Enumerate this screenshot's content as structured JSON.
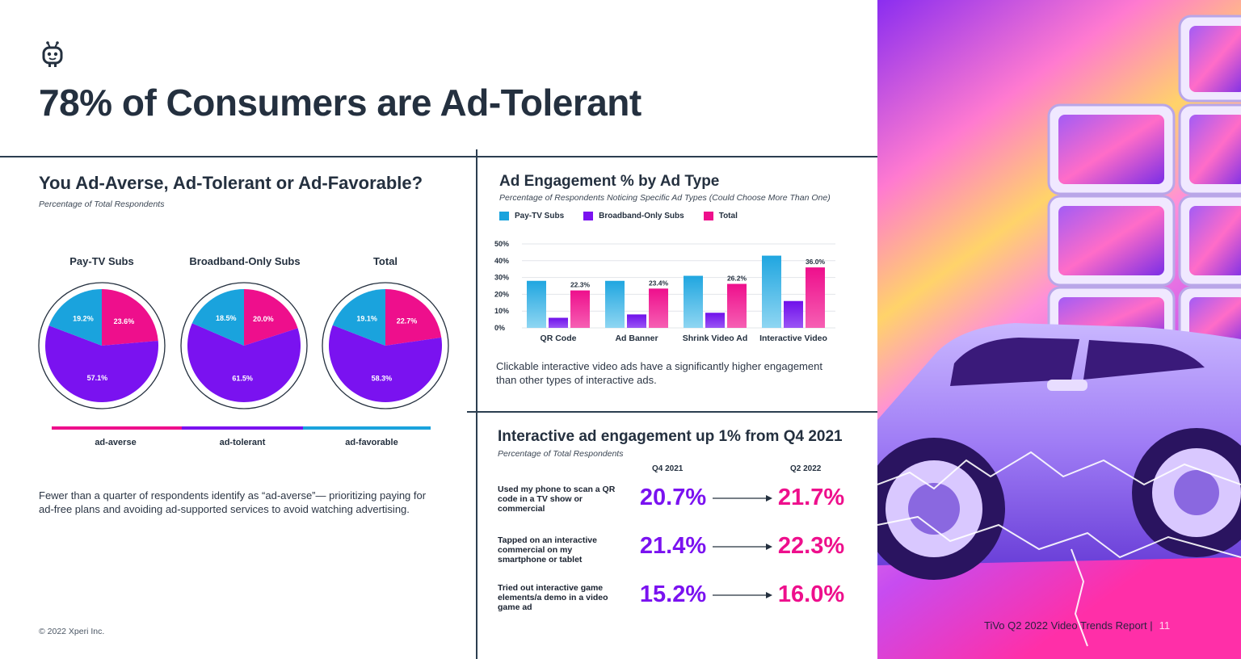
{
  "header": {
    "title": "78% of Consumers are Ad-Tolerant"
  },
  "pies_section": {
    "title": "You Ad-Averse, Ad-Tolerant or Ad-Favorable?",
    "subtitle": "Percentage of Total Respondents",
    "legend": [
      "ad-averse",
      "ad-tolerant",
      "ad-favorable"
    ],
    "description": "Fewer than a quarter of respondents identify as “ad-averse”— prioritizing paying for ad-free plans and avoiding ad-supported services to avoid watching advertising."
  },
  "bar_section": {
    "title": "Ad Engagement % by Ad Type",
    "subtitle": "Percentage of Respondents Noticing Specific Ad Types (Could Choose More Than One)",
    "description": "Clickable interactive video ads have a significantly higher engagement than other types of interactive ads."
  },
  "interactive_section": {
    "title": "Interactive ad engagement up 1% from Q4 2021",
    "subtitle": "Percentage of Total Respondents",
    "col_q4": "Q4 2021",
    "col_q2": "Q2 2022",
    "rows": [
      {
        "label": "Used my phone to scan a QR code in a TV show or commercial",
        "q4": "20.7%",
        "q2": "21.7%"
      },
      {
        "label": "Tapped on an interactive commercial on my smartphone or tablet",
        "q4": "21.4%",
        "q2": "22.3%"
      },
      {
        "label": "Tried out interactive game elements/a demo in a video game ad",
        "q4": "15.2%",
        "q2": "16.0%"
      }
    ]
  },
  "footer": {
    "copyright": "© 2022 Xperi Inc.",
    "report": "TiVo Q2 2022 Video Trends Report  |",
    "page": "11"
  },
  "colors": {
    "averse": "#ee0f8c",
    "tolerant": "#7a12f0",
    "favorable": "#1aa3dd",
    "text": "#24303f"
  },
  "chart_data": [
    {
      "type": "pie",
      "title": "Pay-TV Subs",
      "categories": [
        "ad-averse",
        "ad-tolerant",
        "ad-favorable"
      ],
      "values": [
        23.6,
        57.1,
        19.2
      ],
      "labels": [
        "23.6%",
        "57.1%",
        "19.2%"
      ]
    },
    {
      "type": "pie",
      "title": "Broadband-Only Subs",
      "categories": [
        "ad-averse",
        "ad-tolerant",
        "ad-favorable"
      ],
      "values": [
        20.0,
        61.5,
        18.5
      ],
      "labels": [
        "20.0%",
        "61.5%",
        "18.5%"
      ]
    },
    {
      "type": "pie",
      "title": "Total",
      "categories": [
        "ad-averse",
        "ad-tolerant",
        "ad-favorable"
      ],
      "values": [
        22.7,
        58.3,
        19.1
      ],
      "labels": [
        "22.7%",
        "58.3%",
        "19.1%"
      ]
    },
    {
      "type": "bar",
      "title": "Ad Engagement % by Ad Type",
      "categories": [
        "QR Code",
        "Ad Banner",
        "Shrink Video Ad",
        "Interactive Video"
      ],
      "series": [
        {
          "name": "Pay-TV Subs",
          "values": [
            28,
            28,
            31,
            43
          ]
        },
        {
          "name": "Broadband-Only Subs",
          "values": [
            6,
            8,
            9,
            16
          ]
        },
        {
          "name": "Total",
          "values": [
            22.3,
            23.4,
            26.2,
            36.0
          ]
        }
      ],
      "data_labels": [
        "22.3%",
        "23.4%",
        "26.2%",
        "36.0%"
      ],
      "yticks": [
        "0%",
        "10%",
        "20%",
        "30%",
        "40%",
        "50%"
      ],
      "ylim": [
        0,
        50
      ],
      "legend": "top-left"
    }
  ]
}
